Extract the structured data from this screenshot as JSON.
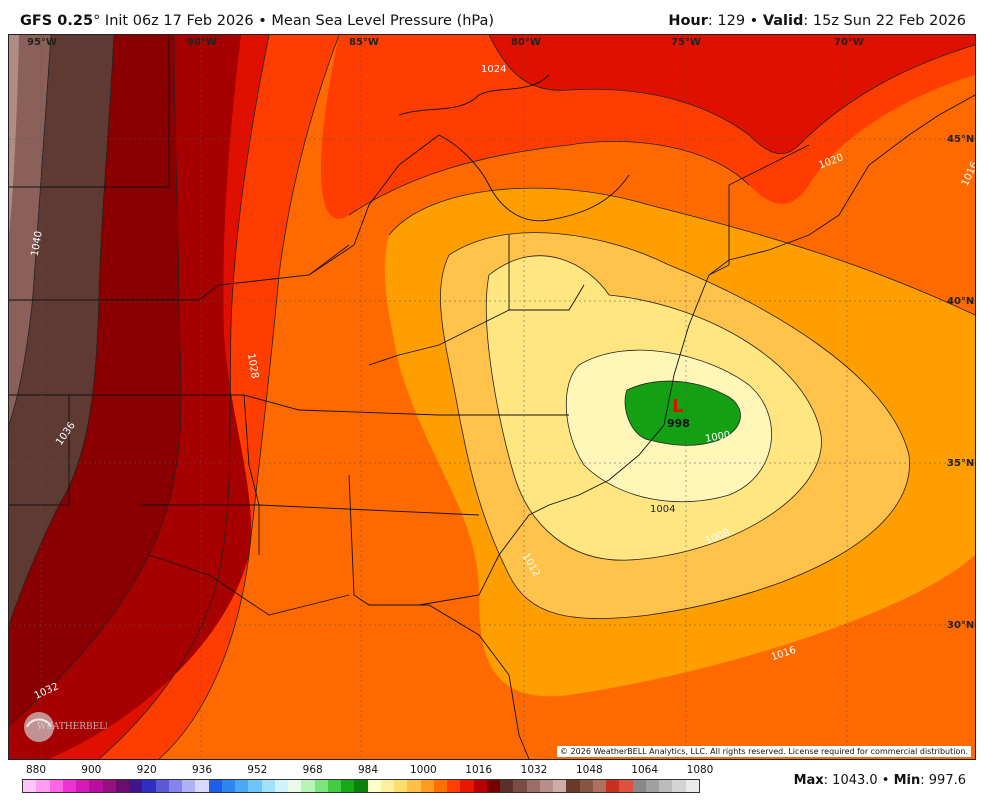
{
  "header": {
    "model": "GFS 0.25",
    "degree": "°",
    "init": " Init 06z 17 Feb 2026",
    "bullet": " • ",
    "field": "Mean Sea Level Pressure (hPa)",
    "hour_label": "Hour",
    "hour_value": ": 129",
    "valid_label": "Valid",
    "valid_value": ": 15z Sun 22 Feb 2026"
  },
  "map": {
    "longitude_labels": [
      "95°W",
      "90°W",
      "85°W",
      "80°W",
      "75°W",
      "70°W"
    ],
    "latitude_labels": [
      "45°N",
      "40°N",
      "35°N",
      "30°N"
    ],
    "isobar_labels": [
      "1024",
      "1020",
      "1016",
      "1012",
      "1008",
      "1004",
      "1000",
      "1016",
      "1028",
      "1032",
      "1036",
      "1040",
      "1024"
    ],
    "low_center": {
      "symbol": "L",
      "value": "998"
    },
    "copyright": "© 2026 WeatherBELL Analytics, LLC. All rights reserved. License required for commercial distribution.",
    "colors": {
      "low_green": "#13a013",
      "pale_yellow": "#fff6b8",
      "yellow": "#ffe680",
      "light_orange": "#ffc24a",
      "orange": "#ff9e00",
      "dark_orange": "#ff6a00",
      "red_orange": "#ff3d00",
      "red": "#e01000",
      "dark_red": "#a60000",
      "brown": "#5e3a33",
      "mauve": "#8a6058",
      "rose": "#b08c86"
    }
  },
  "scale": {
    "labels": [
      "880",
      "900",
      "920",
      "936",
      "952",
      "968",
      "984",
      "1000",
      "1016",
      "1032",
      "1048",
      "1064",
      "1080"
    ],
    "colors": [
      "#ffc4f8",
      "#ff9ef0",
      "#ff66e6",
      "#ee33d6",
      "#d41ab8",
      "#b80fa0",
      "#961080",
      "#6a0c70",
      "#40148c",
      "#3030c0",
      "#5a5ad8",
      "#8484ec",
      "#b0b0f6",
      "#d8d8fc",
      "#1a60e8",
      "#2f86f0",
      "#4aa8f4",
      "#6ec6f8",
      "#a0e0fa",
      "#d0f2fc",
      "#e8fce8",
      "#b8f4b8",
      "#7ee47e",
      "#44cc44",
      "#17a817",
      "#0a820a",
      "#ffffcc",
      "#fff0a0",
      "#ffdc70",
      "#ffc04a",
      "#ff9c20",
      "#ff7000",
      "#ff4000",
      "#e81800",
      "#b80000",
      "#7a0000",
      "#5a3028",
      "#7a4c44",
      "#9a6e66",
      "#b89088",
      "#d0aca6",
      "#6a3a2a",
      "#8a5644",
      "#b07060",
      "#c83020",
      "#e05040",
      "#888888",
      "#a0a0a0",
      "#bcbcbc",
      "#d4d4d4",
      "#eaeaea"
    ]
  },
  "stats": {
    "max_label": "Max",
    "max_value": ": 1043.0",
    "min_label": "Min",
    "min_value": ": 997.6"
  }
}
